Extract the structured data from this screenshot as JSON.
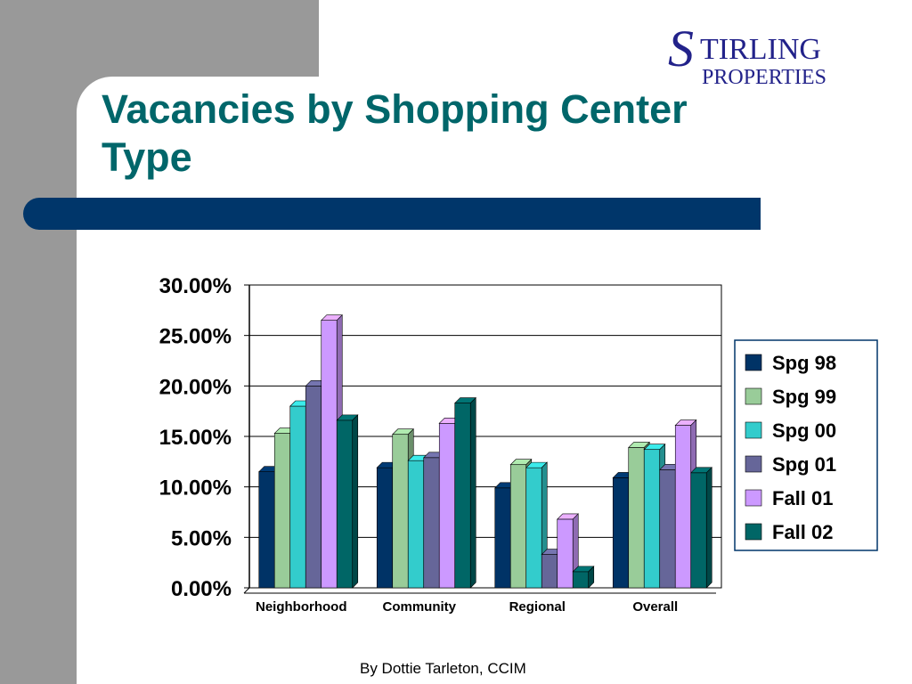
{
  "slide": {
    "title": "Vacancies by Shopping Center Type",
    "footer": "By Dottie Tarleton, CCIM",
    "logo": {
      "line1": "STIRLING",
      "line2": "PROPERTIES"
    }
  },
  "colors": {
    "title": "#00666a",
    "band": "#00366a",
    "side_gray": "#999999"
  },
  "chart_data": {
    "type": "bar",
    "categories": [
      "Neighborhood",
      "Community",
      "Regional",
      "Overall"
    ],
    "series": [
      {
        "name": "Spg 98",
        "color": "#003366",
        "values": [
          11.5,
          11.9,
          9.9,
          10.9
        ]
      },
      {
        "name": "Spg 99",
        "color": "#99cc99",
        "values": [
          15.3,
          15.2,
          12.2,
          13.9
        ]
      },
      {
        "name": "Spg 00",
        "color": "#33cccc",
        "values": [
          18.0,
          12.6,
          11.9,
          13.7
        ]
      },
      {
        "name": "Spg 01",
        "color": "#666699",
        "values": [
          20.0,
          12.9,
          3.3,
          11.7
        ]
      },
      {
        "name": "Fall 01",
        "color": "#cc99ff",
        "values": [
          26.5,
          16.3,
          6.8,
          16.1
        ]
      },
      {
        "name": "Fall 02",
        "color": "#006666",
        "values": [
          16.6,
          18.3,
          1.6,
          11.4
        ]
      }
    ],
    "y_ticks": [
      "0.00%",
      "5.00%",
      "10.00%",
      "15.00%",
      "20.00%",
      "25.00%",
      "30.00%"
    ],
    "ylim": [
      0,
      30
    ],
    "grid": true,
    "legend": "right"
  }
}
